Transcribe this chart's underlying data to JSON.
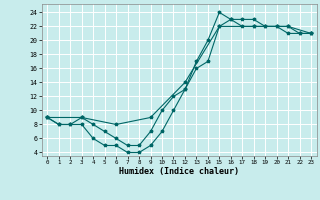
{
  "title": "",
  "xlabel": "Humidex (Indice chaleur)",
  "background_color": "#c8ecec",
  "grid_color": "#ffffff",
  "line_color": "#006666",
  "xlim": [
    -0.5,
    23.5
  ],
  "ylim": [
    3.5,
    25.2
  ],
  "xticks": [
    0,
    1,
    2,
    3,
    4,
    5,
    6,
    7,
    8,
    9,
    10,
    11,
    12,
    13,
    14,
    15,
    16,
    17,
    18,
    19,
    20,
    21,
    22,
    23
  ],
  "yticks": [
    4,
    6,
    8,
    10,
    12,
    14,
    16,
    18,
    20,
    22,
    24
  ],
  "line1_x": [
    0,
    1,
    2,
    3,
    4,
    5,
    6,
    7,
    8,
    9,
    10,
    11,
    12,
    13,
    14,
    15,
    16,
    17,
    18,
    19,
    20,
    21,
    22,
    23
  ],
  "line1_y": [
    9,
    8,
    8,
    8,
    6,
    5,
    5,
    4,
    4,
    5,
    7,
    10,
    13,
    16,
    17,
    22,
    23,
    22,
    22,
    22,
    22,
    21,
    21,
    21
  ],
  "line2_x": [
    0,
    1,
    2,
    3,
    4,
    5,
    6,
    7,
    8,
    9,
    10,
    11,
    12,
    13,
    14,
    15,
    16,
    17,
    18,
    19,
    20,
    21,
    22,
    23
  ],
  "line2_y": [
    9,
    8,
    8,
    9,
    8,
    7,
    6,
    5,
    5,
    7,
    10,
    12,
    13,
    17,
    20,
    24,
    23,
    23,
    23,
    22,
    22,
    22,
    21,
    21
  ],
  "line3_x": [
    0,
    3,
    6,
    9,
    12,
    15,
    18,
    21,
    23
  ],
  "line3_y": [
    9,
    9,
    8,
    9,
    14,
    22,
    22,
    22,
    21
  ]
}
